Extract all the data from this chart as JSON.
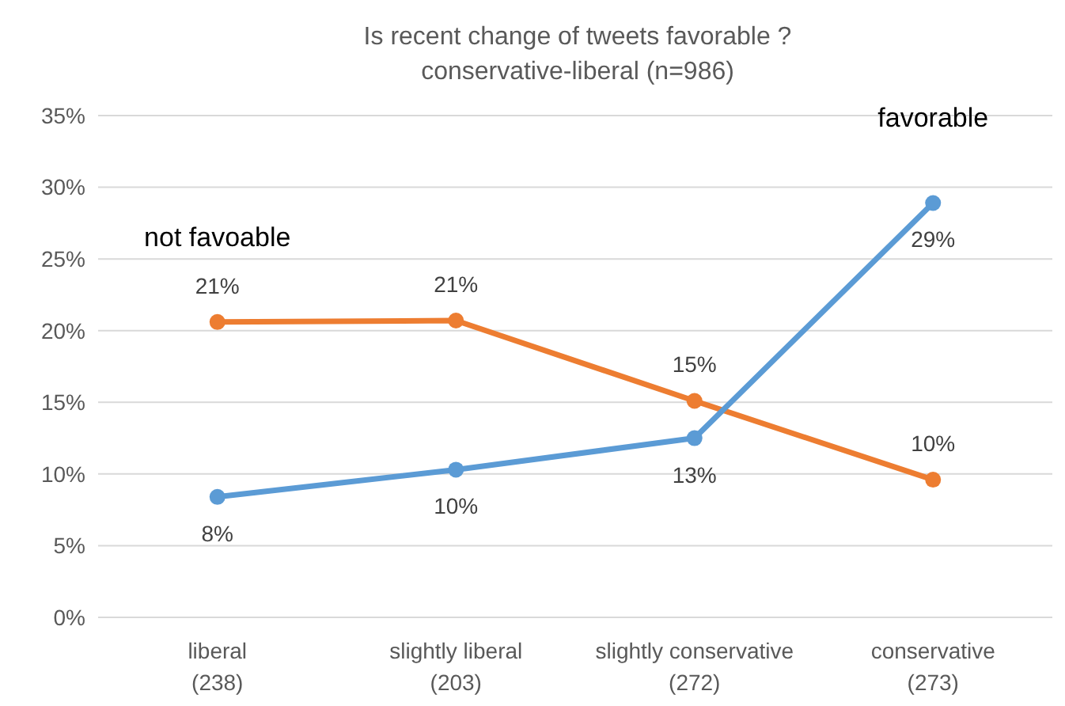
{
  "chart_data": {
    "type": "line",
    "title": "Is recent change of tweets favorable ?",
    "subtitle": "conservative-liberal (n=986)",
    "categories": [
      "liberal\n(238)",
      "slightly liberal\n(203)",
      "slightly conservative\n(272)",
      "conservative\n(273)"
    ],
    "series": [
      {
        "name": "not favoable",
        "color": "#ed7d31",
        "values": [
          20.6,
          20.7,
          15.1,
          9.6
        ],
        "value_labels": [
          "21%",
          "21%",
          "15%",
          "10%"
        ]
      },
      {
        "name": "favorable",
        "color": "#5b9bd5",
        "values": [
          8.4,
          10.3,
          12.5,
          28.9
        ],
        "value_labels": [
          "8%",
          "10%",
          "13%",
          "29%"
        ]
      }
    ],
    "ylim": [
      0,
      35
    ],
    "yticks": [
      {
        "value": 0,
        "label": "0%"
      },
      {
        "value": 5,
        "label": "5%"
      },
      {
        "value": 10,
        "label": "10%"
      },
      {
        "value": 15,
        "label": "15%"
      },
      {
        "value": 20,
        "label": "20%"
      },
      {
        "value": 25,
        "label": "25%"
      },
      {
        "value": 30,
        "label": "30%"
      },
      {
        "value": 35,
        "label": "35%"
      }
    ],
    "grid": "y",
    "marker": "circle",
    "line_style": "solid"
  }
}
